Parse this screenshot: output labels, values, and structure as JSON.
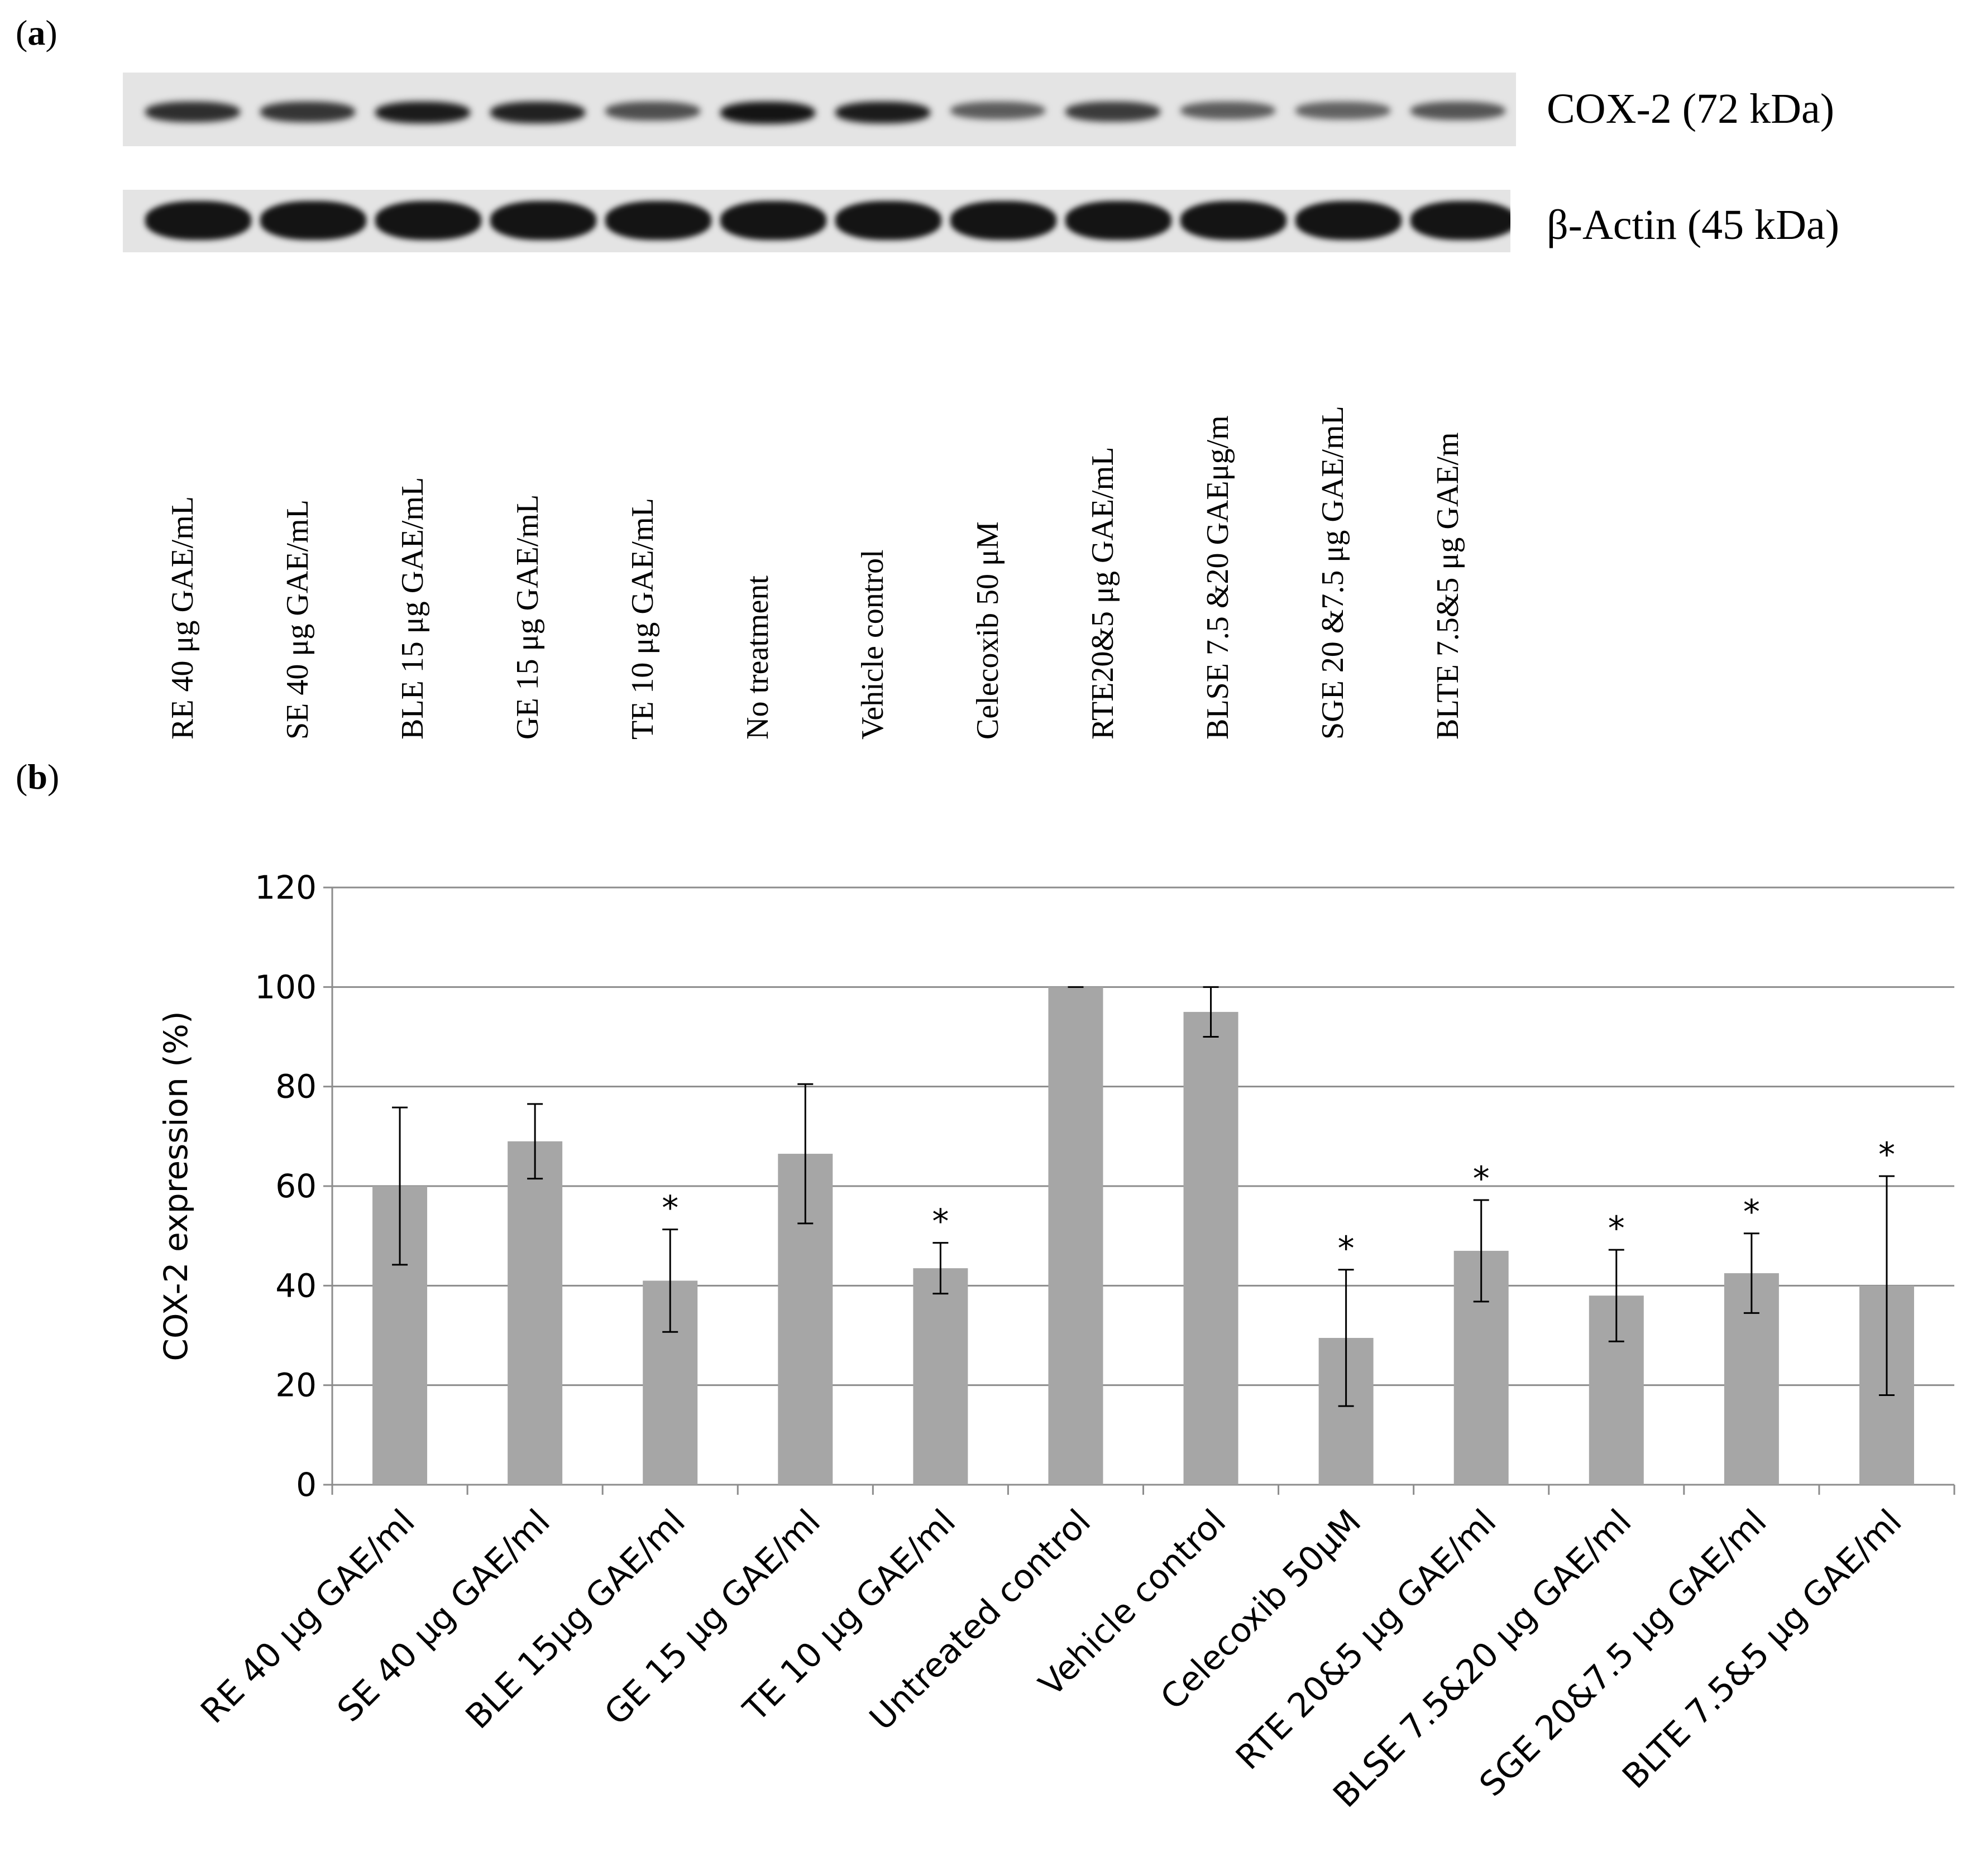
{
  "panel_a": {
    "label": "a",
    "cox2_label": "COX-2 (72 kDa)",
    "actin_label": "β-Actin (45 kDa)",
    "lanes": [
      "RE 40 μg GAE/mL",
      "SE 40 μg GAE/mL",
      "BLE 15 μg GAE/mL",
      "GE 15 μg GAE/mL",
      "TE 10 μg GAE/mL",
      "No treatment",
      "Vehicle control",
      "Celecoxib 50 μM",
      "RTE20&5 μg GAE/mL",
      "BLSE 7.5 &20 GAEμg/m",
      "SGE 20 &7.5 μg GAE/mL",
      "BLTE 7.5&5 μg GAE/m"
    ],
    "cox2_band_intensity": [
      0.8,
      0.75,
      0.95,
      0.9,
      0.55,
      1.0,
      0.95,
      0.45,
      0.7,
      0.45,
      0.4,
      0.5
    ],
    "actin_band_intensity": [
      1,
      1,
      1,
      1,
      1,
      1,
      1,
      1,
      1,
      1,
      1,
      1
    ]
  },
  "panel_b": {
    "label": "b"
  },
  "chart_data": {
    "type": "bar",
    "title": "",
    "xlabel": "",
    "ylabel": "COX-2 expression (%)",
    "ylim": [
      0,
      120
    ],
    "yticks": [
      0,
      20,
      40,
      60,
      80,
      100,
      120
    ],
    "grid": true,
    "categories": [
      "RE 40 μg GAE/ml",
      "SE 40 μg GAE/ml",
      "BLE 15μg GAE/ml",
      "GE 15 μg GAE/ml",
      "TE 10 μg GAE/ml",
      "Untreated control",
      "Vehicle control",
      "Celecoxib 50μM",
      "RTE 20&5 μg GAE/ml",
      "BLSE 7.5&20 μg GAE/ml",
      "SGE  20&7.5 μg GAE/ml",
      "BLTE  7.5&5 μg GAE/ml"
    ],
    "values": [
      60,
      69,
      41,
      66.5,
      43.5,
      100,
      95,
      29.5,
      47,
      38,
      42.5,
      40
    ],
    "errors": [
      15.8,
      7.5,
      10.3,
      14,
      5.1,
      0,
      5,
      13.7,
      10.2,
      9.2,
      8,
      22
    ],
    "significant": [
      false,
      false,
      true,
      false,
      true,
      false,
      false,
      true,
      true,
      true,
      true,
      true
    ],
    "significance_marker": "*",
    "bar_color": "#a6a6a6"
  }
}
